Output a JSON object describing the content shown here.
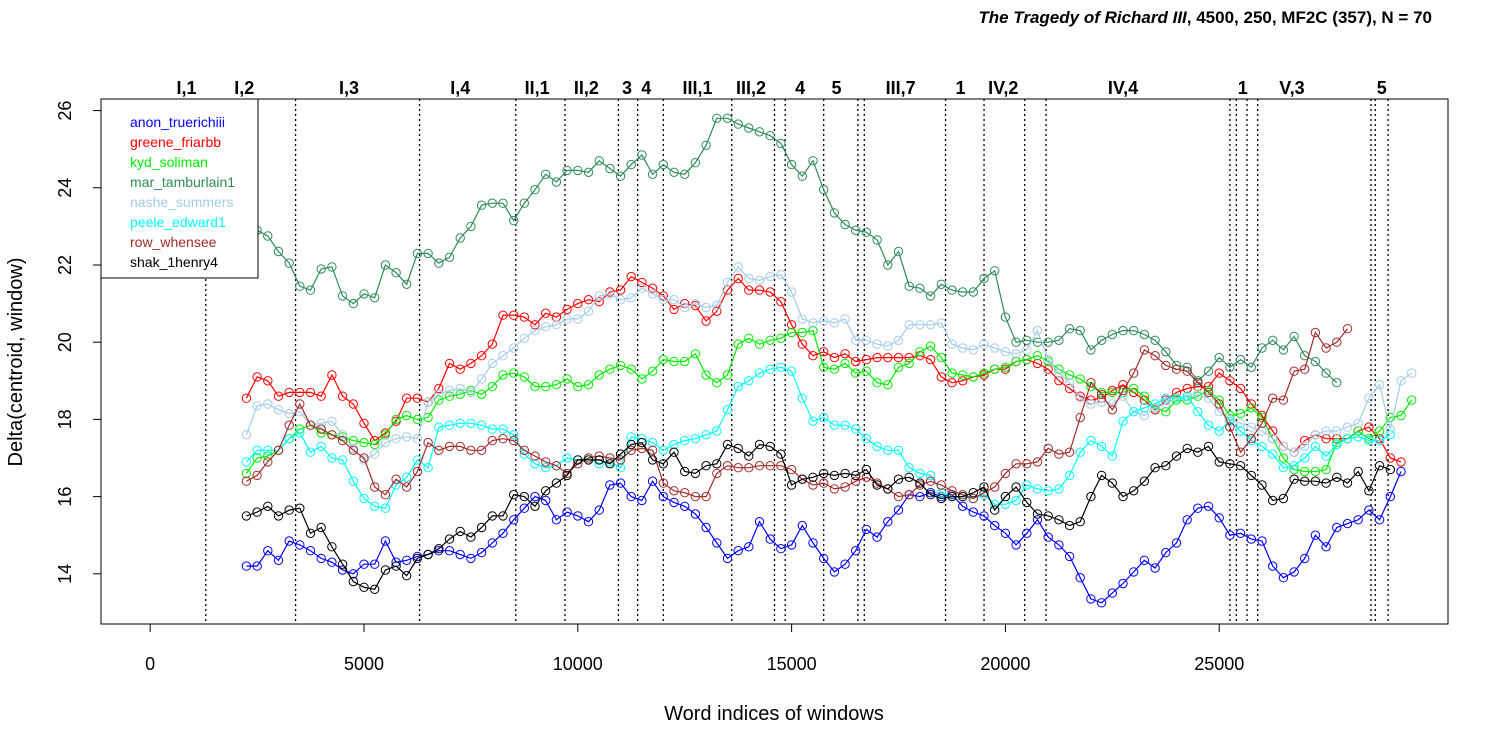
{
  "title": {
    "play": "The Tragedy of Richard III",
    "rest": ", 4500, 250, MF2C (357), N = 70"
  },
  "chart_data": {
    "type": "line",
    "xlabel": "Word indices of windows",
    "ylabel": "Delta(centroid, window)",
    "xlim": [
      -1150,
      30350
    ],
    "ylim": [
      12.7,
      26.3
    ],
    "xticks": [
      0,
      5000,
      10000,
      15000,
      20000,
      25000
    ],
    "yticks": [
      14,
      16,
      18,
      20,
      22,
      24,
      26
    ],
    "legend_position": "top-left",
    "scene_boundaries": [
      1300,
      3400,
      6300,
      8550,
      9700,
      10950,
      11400,
      12000,
      13600,
      14600,
      14850,
      15750,
      16550,
      16700,
      18600,
      19500,
      20450,
      20950,
      25250,
      25400,
      25650,
      25900,
      28550,
      28650,
      28950
    ],
    "scene_labels": [
      {
        "label": "I,1",
        "x": 850
      },
      {
        "label": "I,2",
        "x": 2200
      },
      {
        "label": "I,3",
        "x": 4650
      },
      {
        "label": "I,4",
        "x": 7250
      },
      {
        "label": "II,1",
        "x": 9050
      },
      {
        "label": "II,2",
        "x": 10200
      },
      {
        "label": "3",
        "x": 11150
      },
      {
        "label": "4",
        "x": 11600
      },
      {
        "label": "III,1",
        "x": 12800
      },
      {
        "label": "III,2",
        "x": 14050
      },
      {
        "label": "4",
        "x": 15200
      },
      {
        "label": "5",
        "x": 16050
      },
      {
        "label": "III,7",
        "x": 17550
      },
      {
        "label": "1",
        "x": 18950
      },
      {
        "label": "IV,2",
        "x": 19950
      },
      {
        "label": "IV,4",
        "x": 22750
      },
      {
        "label": "1",
        "x": 25550
      },
      {
        "label": "V,3",
        "x": 26700
      },
      {
        "label": "5",
        "x": 28800
      }
    ],
    "x_start": 2250,
    "x_step": 250,
    "series": [
      {
        "name": "anon_truerichiii",
        "color": "#0000ff",
        "values": [
          14.2,
          14.2,
          14.6,
          14.35,
          14.85,
          14.75,
          14.6,
          14.4,
          14.3,
          14.1,
          14.0,
          14.25,
          14.25,
          14.85,
          14.3,
          14.35,
          14.45,
          14.5,
          14.6,
          14.6,
          14.5,
          14.4,
          14.55,
          14.8,
          15.05,
          15.4,
          15.7,
          16.0,
          15.9,
          15.4,
          15.6,
          15.5,
          15.35,
          15.65,
          16.3,
          16.35,
          16.0,
          15.9,
          16.4,
          16.0,
          15.85,
          15.75,
          15.55,
          15.2,
          14.8,
          14.4,
          14.6,
          14.7,
          15.35,
          14.9,
          14.65,
          14.75,
          15.25,
          14.8,
          14.4,
          14.05,
          14.25,
          14.6,
          15.15,
          14.95,
          15.35,
          15.65,
          16.05,
          16.0,
          16.1,
          16.0,
          16.05,
          15.75,
          15.6,
          15.5,
          15.25,
          15.05,
          14.75,
          15.05,
          15.4,
          14.95,
          14.75,
          14.45,
          13.9,
          13.35,
          13.25,
          13.5,
          13.75,
          14.05,
          14.35,
          14.15,
          14.55,
          14.8,
          15.4,
          15.7,
          15.75,
          15.45,
          15.0,
          15.05,
          14.9,
          14.85,
          14.2,
          13.9,
          14.05,
          14.4,
          15.0,
          14.7,
          15.2,
          15.3,
          15.4,
          15.65,
          15.4,
          16.0,
          16.65
        ]
      },
      {
        "name": "greene_friarbb",
        "color": "#ff0000",
        "values": [
          18.55,
          19.1,
          19.0,
          18.6,
          18.7,
          18.7,
          18.7,
          18.6,
          19.15,
          18.6,
          18.4,
          17.9,
          17.45,
          17.65,
          17.95,
          18.55,
          18.55,
          18.45,
          18.8,
          19.45,
          19.3,
          19.45,
          19.65,
          19.95,
          20.7,
          20.7,
          20.65,
          20.45,
          20.75,
          20.65,
          20.85,
          21.0,
          21.1,
          21.05,
          21.3,
          21.35,
          21.7,
          21.55,
          21.4,
          21.2,
          20.85,
          21.0,
          20.95,
          20.55,
          20.8,
          21.35,
          21.65,
          21.35,
          21.35,
          21.3,
          21.05,
          20.45,
          19.95,
          19.65,
          19.75,
          19.6,
          19.7,
          19.5,
          19.55,
          19.6,
          19.6,
          19.6,
          19.6,
          19.65,
          19.55,
          19.1,
          18.95,
          19.0,
          19.1,
          19.15,
          19.3,
          19.3,
          19.5,
          19.55,
          19.45,
          19.3,
          19.0,
          18.8,
          18.6,
          18.5,
          18.55,
          18.75,
          18.9,
          18.7,
          18.5,
          18.25,
          18.5,
          18.7,
          18.8,
          18.85,
          18.85,
          19.2,
          19.0,
          18.8,
          18.4,
          18.1,
          17.7,
          17.3,
          17.15,
          17.45,
          17.6,
          17.5,
          17.5,
          17.5,
          17.7,
          17.8,
          17.5,
          17.0,
          16.9
        ]
      },
      {
        "name": "kyd_soliman",
        "color": "#00ee00",
        "values": [
          16.6,
          17.0,
          17.05,
          17.2,
          17.5,
          17.75,
          17.85,
          17.65,
          17.6,
          17.55,
          17.45,
          17.4,
          17.35,
          17.6,
          18.0,
          18.1,
          18.0,
          18.05,
          18.5,
          18.6,
          18.65,
          18.75,
          18.65,
          18.85,
          19.15,
          19.2,
          19.1,
          18.85,
          18.85,
          18.9,
          19.05,
          18.85,
          18.9,
          19.15,
          19.3,
          19.4,
          19.3,
          19.05,
          19.25,
          19.55,
          19.5,
          19.5,
          19.7,
          19.15,
          18.95,
          19.15,
          19.95,
          20.1,
          19.95,
          20.05,
          20.1,
          20.25,
          20.25,
          20.3,
          19.35,
          19.3,
          19.45,
          19.2,
          19.25,
          18.95,
          18.9,
          19.35,
          19.45,
          19.75,
          19.9,
          19.6,
          19.2,
          19.15,
          19.1,
          19.2,
          19.3,
          19.35,
          19.5,
          19.55,
          19.65,
          19.5,
          19.3,
          19.15,
          19.05,
          18.85,
          18.7,
          18.7,
          18.7,
          18.8,
          18.6,
          18.3,
          18.2,
          18.5,
          18.5,
          18.6,
          18.75,
          18.5,
          18.1,
          18.15,
          18.3,
          18.05,
          17.5,
          17.0,
          16.7,
          16.65,
          16.65,
          16.7,
          17.4,
          17.5,
          17.7,
          17.5,
          17.7,
          18.05,
          18.1,
          18.5
        ]
      },
      {
        "name": "mar_tamburlain1",
        "color": "#2e8b57",
        "values": [
          22.85,
          22.9,
          22.75,
          22.35,
          22.05,
          21.45,
          21.35,
          21.9,
          21.95,
          21.2,
          21.0,
          21.25,
          21.15,
          22.0,
          21.8,
          21.5,
          22.3,
          22.3,
          22.05,
          22.2,
          22.7,
          23.0,
          23.55,
          23.6,
          23.6,
          23.15,
          23.6,
          23.95,
          24.35,
          24.15,
          24.45,
          24.45,
          24.4,
          24.7,
          24.5,
          24.3,
          24.6,
          24.85,
          24.35,
          24.6,
          24.4,
          24.35,
          24.65,
          25.1,
          25.8,
          25.8,
          25.65,
          25.55,
          25.45,
          25.35,
          25.15,
          24.6,
          24.3,
          24.7,
          23.95,
          23.35,
          23.05,
          22.9,
          22.85,
          22.65,
          22.0,
          22.35,
          21.45,
          21.4,
          21.2,
          21.5,
          21.35,
          21.3,
          21.3,
          21.65,
          21.85,
          20.65,
          20.0,
          20.05,
          20.0,
          20.0,
          20.05,
          20.35,
          20.3,
          19.8,
          20.05,
          20.2,
          20.3,
          20.3,
          20.2,
          20.05,
          19.75,
          19.4,
          19.35,
          19.0,
          19.25,
          19.6,
          19.35,
          19.55,
          19.35,
          19.85,
          20.05,
          19.8,
          20.15,
          19.65,
          19.5,
          19.2,
          18.95
        ]
      },
      {
        "name": "nashe_summers",
        "color": "#a4cde8",
        "values": [
          17.6,
          18.35,
          18.4,
          18.25,
          18.15,
          18.2,
          17.85,
          17.9,
          17.95,
          17.6,
          17.25,
          16.95,
          17.1,
          17.4,
          17.5,
          17.55,
          17.5,
          18.45,
          18.65,
          18.75,
          18.8,
          18.7,
          19.05,
          19.45,
          19.65,
          19.85,
          20.1,
          20.3,
          20.4,
          20.45,
          20.6,
          20.6,
          20.8,
          21.2,
          21.25,
          21.1,
          21.15,
          21.4,
          21.25,
          21.1,
          21.1,
          20.9,
          21.0,
          20.9,
          20.95,
          21.55,
          21.95,
          21.65,
          21.6,
          21.7,
          21.75,
          21.3,
          20.6,
          20.5,
          20.55,
          20.5,
          20.6,
          20.05,
          20.05,
          19.95,
          19.9,
          20.05,
          20.45,
          20.45,
          20.45,
          20.5,
          19.95,
          19.85,
          19.8,
          19.95,
          19.85,
          19.75,
          19.7,
          19.8,
          20.3,
          19.55,
          19.2,
          18.95,
          18.55,
          18.4,
          18.45,
          18.4,
          18.6,
          18.2,
          18.1,
          18.3,
          18.4,
          18.55,
          18.55,
          18.65,
          18.55,
          18.2,
          18.0,
          17.9,
          17.8,
          17.7,
          17.5,
          17.3,
          17.15,
          17.3,
          17.6,
          17.7,
          17.7,
          17.8,
          17.9,
          18.55,
          18.9,
          17.75,
          19.0,
          19.2
        ]
      },
      {
        "name": "peele_edward1",
        "color": "#00ffff",
        "values": [
          16.9,
          17.2,
          17.2,
          17.2,
          17.5,
          17.65,
          17.15,
          17.3,
          17.0,
          16.95,
          16.4,
          15.95,
          15.75,
          15.7,
          16.3,
          16.5,
          16.95,
          16.75,
          17.8,
          17.85,
          17.9,
          17.9,
          17.85,
          17.75,
          17.75,
          17.6,
          17.1,
          16.85,
          16.75,
          16.8,
          17.0,
          16.95,
          17.0,
          16.85,
          16.9,
          16.75,
          17.55,
          17.5,
          17.4,
          17.2,
          17.35,
          17.45,
          17.5,
          17.6,
          17.7,
          18.25,
          18.85,
          19.0,
          19.2,
          19.3,
          19.35,
          19.25,
          18.55,
          17.95,
          18.05,
          17.85,
          17.85,
          17.75,
          17.5,
          17.3,
          17.2,
          17.2,
          16.75,
          16.6,
          16.55,
          16.1,
          16.0,
          16.0,
          15.95,
          16.05,
          15.8,
          15.8,
          15.9,
          16.3,
          16.2,
          16.15,
          16.2,
          16.55,
          17.15,
          17.45,
          17.3,
          17.05,
          17.95,
          18.2,
          18.3,
          18.4,
          18.55,
          18.55,
          18.6,
          18.2,
          17.85,
          17.7,
          17.95,
          17.7,
          17.45,
          17.3,
          17.1,
          16.75,
          16.8,
          17.0,
          17.3,
          17.05,
          17.35,
          17.5,
          17.55,
          17.45,
          17.45,
          17.6
        ]
      },
      {
        "name": "row_whensee",
        "color": "#a52a2a",
        "values": [
          16.4,
          16.55,
          16.9,
          17.2,
          17.85,
          18.4,
          17.85,
          17.75,
          17.6,
          17.45,
          17.2,
          17.0,
          16.25,
          16.05,
          16.45,
          16.25,
          16.65,
          17.4,
          17.2,
          17.3,
          17.3,
          17.2,
          17.2,
          17.45,
          17.5,
          17.45,
          17.2,
          17.05,
          16.9,
          16.8,
          16.6,
          16.85,
          17.0,
          17.05,
          17.0,
          16.95,
          17.2,
          17.25,
          17.2,
          16.35,
          16.15,
          16.1,
          16.0,
          16.0,
          16.6,
          16.8,
          16.75,
          16.75,
          16.8,
          16.8,
          16.8,
          16.7,
          16.45,
          16.3,
          16.35,
          16.2,
          16.25,
          16.4,
          16.5,
          16.35,
          16.2,
          16.0,
          16.05,
          16.3,
          16.4,
          16.3,
          16.15,
          16.05,
          15.95,
          16.1,
          16.25,
          16.6,
          16.85,
          16.85,
          16.9,
          17.25,
          17.1,
          17.15,
          18.05,
          18.95,
          18.65,
          18.25,
          18.75,
          19.2,
          19.8,
          19.65,
          19.4,
          19.3,
          19.25,
          18.95,
          18.7,
          18.4,
          17.8,
          17.15,
          17.5,
          17.9,
          18.55,
          18.5,
          19.25,
          19.3,
          20.25,
          19.85,
          20.0,
          20.35
        ]
      },
      {
        "name": "shak_1henry4",
        "color": "#000000",
        "values": [
          15.5,
          15.6,
          15.75,
          15.5,
          15.65,
          15.7,
          15.05,
          15.2,
          14.7,
          14.25,
          13.8,
          13.65,
          13.6,
          14.1,
          14.2,
          13.95,
          14.4,
          14.5,
          14.65,
          14.9,
          15.1,
          14.95,
          15.2,
          15.5,
          15.5,
          16.05,
          16.0,
          15.75,
          16.15,
          16.35,
          16.55,
          16.95,
          16.95,
          16.95,
          16.85,
          17.1,
          17.35,
          17.4,
          16.95,
          16.85,
          17.15,
          16.65,
          16.6,
          16.8,
          16.85,
          17.35,
          17.25,
          17.05,
          17.35,
          17.3,
          17.1,
          16.3,
          16.45,
          16.5,
          16.6,
          16.55,
          16.6,
          16.55,
          16.7,
          16.3,
          16.2,
          16.45,
          16.5,
          16.35,
          16.05,
          15.95,
          16.0,
          16.0,
          16.1,
          16.25,
          15.65,
          16.0,
          16.25,
          15.85,
          15.55,
          15.5,
          15.4,
          15.25,
          15.35,
          16.0,
          16.55,
          16.35,
          16.0,
          16.15,
          16.4,
          16.75,
          16.8,
          17.05,
          17.25,
          17.15,
          17.3,
          16.9,
          16.85,
          16.8,
          16.55,
          16.3,
          15.9,
          15.95,
          16.45,
          16.4,
          16.4,
          16.35,
          16.5,
          16.35,
          16.65,
          16.15,
          16.8,
          16.7
        ]
      }
    ]
  }
}
